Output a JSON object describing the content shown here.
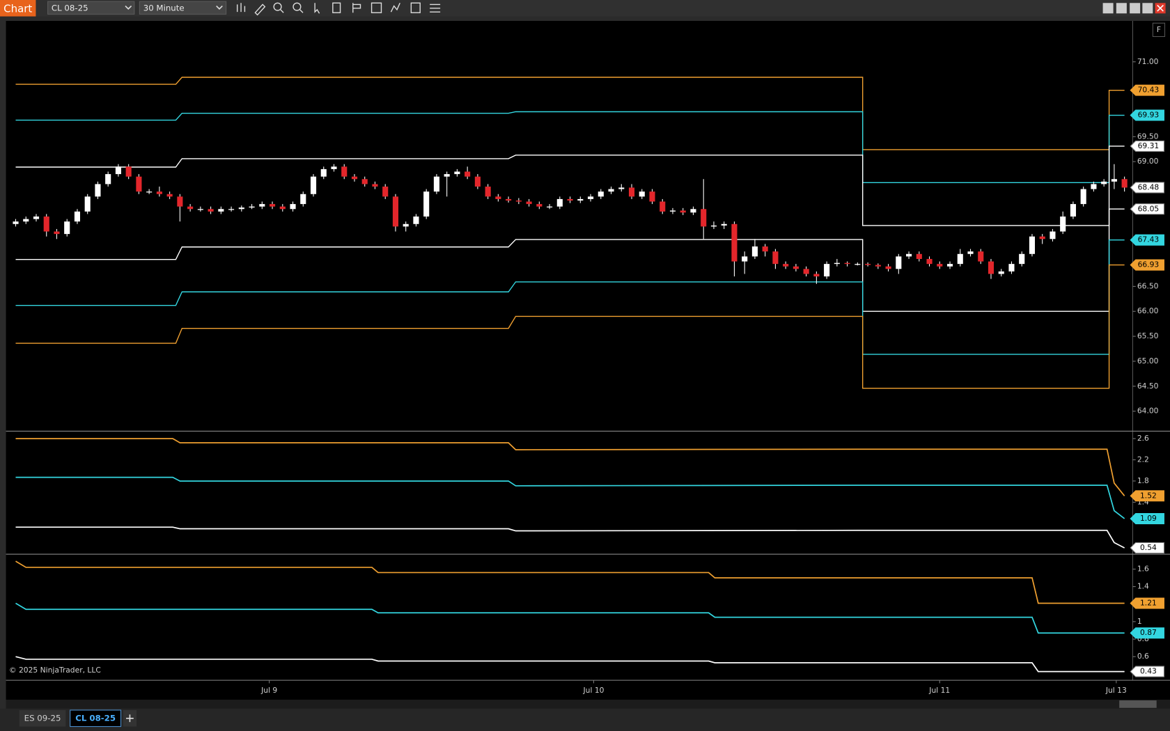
{
  "toolbar": {
    "title": "Chart",
    "instrument": "CL 08-25",
    "interval": "30 Minute",
    "panel_button": "F"
  },
  "tabs": [
    "ES 09-25",
    "CL 08-25"
  ],
  "copyright": "© 2025 NinjaTrader, LLC",
  "chart_data": [
    {
      "type": "candlestick",
      "up_color": "#ffffff",
      "down_color": "#e3262b",
      "open": [
        67.75,
        67.8,
        67.85,
        67.9,
        67.6,
        67.55,
        67.8,
        68.0,
        68.3,
        68.55,
        68.75,
        68.9,
        68.7,
        68.4,
        68.4,
        68.35,
        68.3,
        68.1,
        68.05,
        68.05,
        68.0,
        68.05,
        68.05,
        68.08,
        68.1,
        68.15,
        68.1,
        68.05,
        68.15,
        68.35,
        68.7,
        68.85,
        68.9,
        68.7,
        68.65,
        68.55,
        68.5,
        68.3,
        67.7,
        67.75,
        67.9,
        68.4,
        68.7,
        68.75,
        68.8,
        68.7,
        68.5,
        68.3,
        68.25,
        68.22,
        68.2,
        68.15,
        68.1,
        68.1,
        68.25,
        68.22,
        68.25,
        68.3,
        68.4,
        68.45,
        68.48,
        68.3,
        68.4,
        68.2,
        68.0,
        68.02,
        67.98,
        68.05,
        67.7,
        67.72,
        67.75,
        67.0,
        67.1,
        67.3,
        67.2,
        66.95,
        66.9,
        66.85,
        66.75,
        66.7,
        66.95,
        66.97,
        66.95,
        66.95,
        66.93,
        66.9,
        66.85,
        67.1,
        67.15,
        67.05,
        66.95,
        66.9,
        66.95,
        67.15,
        67.2,
        67.0,
        66.75,
        66.8,
        66.95,
        67.15,
        67.5,
        67.45,
        67.6,
        67.9,
        68.15,
        68.45,
        68.55,
        68.6,
        68.65
      ],
      "high": [
        67.85,
        67.9,
        67.95,
        67.95,
        67.65,
        67.85,
        68.05,
        68.35,
        68.6,
        68.8,
        68.95,
        68.95,
        68.75,
        68.45,
        68.5,
        68.4,
        68.35,
        68.15,
        68.1,
        68.1,
        68.1,
        68.1,
        68.12,
        68.15,
        68.2,
        68.2,
        68.15,
        68.2,
        68.4,
        68.75,
        68.9,
        68.95,
        68.95,
        68.75,
        68.7,
        68.6,
        68.55,
        68.35,
        67.8,
        67.95,
        68.45,
        68.75,
        68.8,
        68.85,
        68.9,
        68.75,
        68.55,
        68.35,
        68.3,
        68.27,
        68.25,
        68.2,
        68.15,
        68.3,
        68.3,
        68.3,
        68.35,
        68.45,
        68.5,
        68.55,
        68.55,
        68.45,
        68.45,
        68.25,
        68.07,
        68.07,
        68.1,
        68.65,
        67.8,
        67.8,
        67.8,
        67.2,
        67.45,
        67.35,
        67.25,
        67.0,
        66.95,
        66.9,
        66.8,
        67.0,
        67.05,
        67.0,
        66.98,
        66.98,
        66.96,
        66.95,
        67.15,
        67.2,
        67.2,
        67.1,
        67.0,
        67.0,
        67.25,
        67.25,
        67.25,
        67.05,
        66.85,
        67.0,
        67.2,
        67.55,
        67.55,
        67.65,
        68.0,
        68.2,
        68.5,
        68.6,
        68.65,
        68.95,
        68.7
      ],
      "low": [
        67.7,
        67.75,
        67.8,
        67.5,
        67.45,
        67.5,
        67.75,
        67.95,
        68.25,
        68.5,
        68.7,
        68.65,
        68.35,
        68.35,
        68.3,
        68.25,
        67.8,
        68.0,
        68.0,
        67.95,
        67.95,
        68.0,
        68.0,
        68.05,
        68.05,
        68.05,
        68.0,
        68.0,
        68.1,
        68.3,
        68.65,
        68.8,
        68.65,
        68.6,
        68.5,
        68.45,
        68.25,
        67.6,
        67.6,
        67.7,
        67.85,
        68.35,
        68.3,
        68.7,
        68.65,
        68.45,
        68.25,
        68.2,
        68.18,
        68.15,
        68.1,
        68.05,
        68.05,
        68.05,
        68.17,
        68.17,
        68.2,
        68.25,
        68.35,
        68.4,
        68.25,
        68.25,
        68.15,
        67.95,
        67.95,
        67.93,
        67.93,
        67.45,
        67.65,
        67.65,
        66.7,
        66.75,
        67.05,
        67.1,
        66.85,
        66.85,
        66.8,
        66.7,
        66.55,
        66.65,
        66.9,
        66.9,
        66.92,
        66.9,
        66.85,
        66.8,
        66.75,
        67.05,
        67.0,
        66.9,
        66.85,
        66.85,
        66.9,
        67.1,
        66.95,
        66.65,
        66.7,
        66.75,
        66.9,
        67.1,
        67.35,
        67.4,
        67.55,
        67.85,
        68.1,
        68.4,
        68.5,
        68.45,
        68.4
      ],
      "close": [
        67.8,
        67.85,
        67.9,
        67.6,
        67.55,
        67.8,
        68.0,
        68.3,
        68.55,
        68.75,
        68.9,
        68.7,
        68.4,
        68.4,
        68.35,
        68.3,
        68.1,
        68.05,
        68.05,
        68.0,
        68.05,
        68.05,
        68.08,
        68.1,
        68.15,
        68.1,
        68.05,
        68.15,
        68.35,
        68.7,
        68.85,
        68.9,
        68.7,
        68.65,
        68.55,
        68.5,
        68.3,
        67.7,
        67.75,
        67.9,
        68.4,
        68.7,
        68.75,
        68.8,
        68.7,
        68.5,
        68.3,
        68.25,
        68.22,
        68.2,
        68.15,
        68.1,
        68.1,
        68.25,
        68.22,
        68.25,
        68.3,
        68.4,
        68.45,
        68.48,
        68.3,
        68.4,
        68.2,
        68.0,
        68.02,
        67.98,
        68.05,
        67.7,
        67.72,
        67.75,
        67.0,
        67.1,
        67.3,
        67.2,
        66.95,
        66.9,
        66.85,
        66.75,
        66.7,
        66.95,
        66.97,
        66.95,
        66.95,
        66.93,
        66.9,
        66.85,
        67.1,
        67.15,
        67.05,
        66.95,
        66.9,
        66.95,
        67.15,
        67.2,
        67.0,
        66.75,
        66.8,
        66.95,
        67.15,
        67.5,
        67.45,
        67.6,
        67.9,
        68.15,
        68.45,
        68.55,
        68.6,
        68.65,
        68.48
      ],
      "xlim": [
        -0.8,
        108.8
      ],
      "xticks": [
        {
          "value": 24.7,
          "label": "Jul 9"
        },
        {
          "value": 56.3,
          "label": "Jul 10"
        },
        {
          "value": 90,
          "label": "Jul 11"
        },
        {
          "value": 107.2,
          "label": "Jul 13"
        }
      ],
      "ylim": [
        63.6,
        71.79
      ],
      "yticks": [
        {
          "value": 71,
          "label": "71.00"
        },
        {
          "value": 69.5,
          "label": "69.50"
        },
        {
          "value": 69,
          "label": "69.00"
        },
        {
          "value": 66.5,
          "label": "66.50"
        },
        {
          "value": 66,
          "label": "66.00"
        },
        {
          "value": 65.5,
          "label": "65.50"
        },
        {
          "value": 65,
          "label": "65.00"
        },
        {
          "value": 64.5,
          "label": "64.50"
        },
        {
          "value": 64,
          "label": "64.00"
        }
      ],
      "series": [
        {
          "color": "#f0a030",
          "x": [
            0,
            15.6,
            16.2,
            48,
            48.7,
            82.5,
            82.5,
            106.5,
            106.5,
            108
          ],
          "values": [
            70.55,
            70.55,
            70.69,
            70.69,
            70.69,
            70.69,
            69.24,
            69.24,
            70.43,
            70.43
          ]
        },
        {
          "color": "#33d6e0",
          "x": [
            0,
            15.6,
            16.2,
            48,
            48.7,
            82.5,
            82.5,
            106.5,
            106.5,
            108
          ],
          "values": [
            69.83,
            69.83,
            69.97,
            69.97,
            70.0,
            70.0,
            68.58,
            68.58,
            69.93,
            69.93
          ]
        },
        {
          "color": "#ffffff",
          "x": [
            0,
            15.6,
            16.2,
            48,
            48.7,
            82.5,
            82.5,
            106.5,
            106.5,
            108
          ],
          "values": [
            68.89,
            68.89,
            69.06,
            69.06,
            69.13,
            69.13,
            67.72,
            67.72,
            69.31,
            69.31
          ]
        },
        {
          "color": "#ffffff",
          "x": [
            0,
            15.6,
            16.2,
            48,
            48.7,
            82.5,
            82.5,
            106.5,
            106.5,
            108
          ],
          "values": [
            67.04,
            67.04,
            67.29,
            67.29,
            67.44,
            67.44,
            66.0,
            66.0,
            68.05,
            68.05
          ]
        },
        {
          "color": "#33d6e0",
          "x": [
            0,
            15.6,
            16.2,
            48,
            48.7,
            82.5,
            82.5,
            106.5,
            106.5,
            108
          ],
          "values": [
            66.12,
            66.12,
            66.39,
            66.39,
            66.59,
            66.59,
            65.14,
            65.14,
            67.43,
            67.43
          ]
        },
        {
          "color": "#f0a030",
          "x": [
            0,
            15.6,
            16.2,
            48,
            48.7,
            82.5,
            82.5,
            106.5,
            106.5,
            108
          ],
          "values": [
            65.36,
            65.36,
            65.66,
            65.66,
            65.9,
            65.9,
            64.46,
            64.46,
            66.93,
            66.93
          ]
        }
      ]
    },
    {
      "type": "line",
      "xlim": [
        -0.8,
        108.8
      ],
      "ylim": [
        0.42,
        2.74
      ],
      "yticks": [
        2.6,
        2.2,
        1.8,
        1.4
      ],
      "series": [
        {
          "color": "#f0a030",
          "x": [
            0,
            15.3,
            16,
            48,
            48.7,
            82,
            106.3,
            107,
            108
          ],
          "values": [
            2.6,
            2.6,
            2.52,
            2.52,
            2.39,
            2.4,
            2.4,
            1.76,
            1.52
          ]
        },
        {
          "color": "#33d6e0",
          "x": [
            0,
            15.3,
            16,
            48,
            48.7,
            82,
            106.3,
            107,
            108
          ],
          "values": [
            1.87,
            1.87,
            1.8,
            1.8,
            1.71,
            1.72,
            1.72,
            1.24,
            1.09
          ]
        },
        {
          "color": "#ffffff",
          "x": [
            0,
            15.3,
            16,
            48,
            48.7,
            82,
            106.3,
            107,
            108
          ],
          "values": [
            0.93,
            0.93,
            0.9,
            0.9,
            0.86,
            0.87,
            0.87,
            0.64,
            0.54
          ]
        }
      ]
    },
    {
      "type": "line",
      "xlim": [
        -0.8,
        108.8
      ],
      "ylim": [
        0.33,
        1.77
      ],
      "yticks": [
        1.6,
        1.4,
        1,
        0.8,
        0.6
      ],
      "series": [
        {
          "color": "#f0a030",
          "x": [
            0,
            1,
            34.7,
            35.3,
            67.5,
            68.1,
            99,
            99.6,
            108
          ],
          "values": [
            1.69,
            1.62,
            1.62,
            1.56,
            1.56,
            1.5,
            1.5,
            1.21,
            1.21
          ]
        },
        {
          "color": "#33d6e0",
          "x": [
            0,
            1,
            34.7,
            35.3,
            67.5,
            68.1,
            99,
            99.6,
            108
          ],
          "values": [
            1.21,
            1.14,
            1.14,
            1.1,
            1.1,
            1.05,
            1.05,
            0.87,
            0.87
          ]
        },
        {
          "color": "#ffffff",
          "x": [
            0,
            1,
            34.7,
            35.3,
            67.5,
            68.1,
            99,
            99.6,
            108
          ],
          "values": [
            0.6,
            0.57,
            0.57,
            0.55,
            0.55,
            0.53,
            0.53,
            0.43,
            0.43
          ]
        }
      ]
    }
  ]
}
